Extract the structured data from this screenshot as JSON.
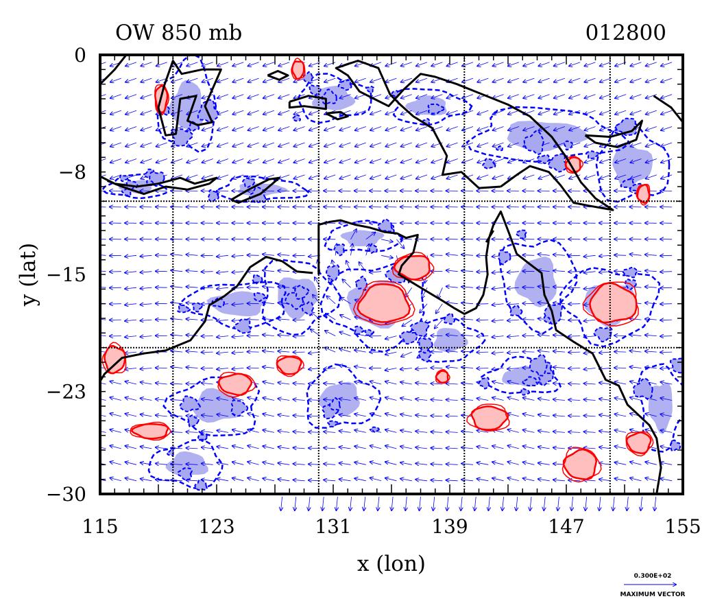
{
  "chart_data": {
    "type": "contour-vector-map",
    "title_left": "OW 850 mb",
    "title_right": "012800",
    "xlabel": "x (lon)",
    "ylabel": "y (lat)",
    "xlim": [
      115,
      155
    ],
    "ylim": [
      -30,
      0
    ],
    "xticks": [
      "115",
      "123",
      "131",
      "139",
      "147",
      "155"
    ],
    "yticks": [
      "0",
      "-8",
      "-15",
      "-23",
      "-30"
    ],
    "grid_lines": {
      "lon": [
        120,
        130,
        140,
        150
      ],
      "lat": [
        -10,
        -20
      ]
    },
    "max_vector_value": "0.300E+02",
    "max_vector_label": "MAXIMUM VECTOR",
    "colors": {
      "positive_line": "#ff0000",
      "positive_fill": "#ffbfbf",
      "negative_line": "#0000ff",
      "negative_fill": "#a8a8f0",
      "coast": "#000000",
      "vectors": "#0000ff"
    },
    "positive_regions": [
      {
        "lon": 134.5,
        "lat": -17.0,
        "rlon": 1.7,
        "rlat": 1.3
      },
      {
        "lon": 150.2,
        "lat": -17.0,
        "rlon": 1.6,
        "rlat": 1.3
      },
      {
        "lon": 124.3,
        "lat": -22.5,
        "rlon": 1.1,
        "rlat": 0.7
      },
      {
        "lon": 118.5,
        "lat": -25.7,
        "rlon": 1.2,
        "rlat": 0.5
      },
      {
        "lon": 116.0,
        "lat": -20.8,
        "rlon": 0.7,
        "rlat": 0.9
      },
      {
        "lon": 141.7,
        "lat": -24.8,
        "rlon": 1.2,
        "rlat": 0.8
      },
      {
        "lon": 148.0,
        "lat": -28.0,
        "rlon": 1.1,
        "rlat": 1.0
      },
      {
        "lon": 152.0,
        "lat": -26.5,
        "rlon": 0.8,
        "rlat": 0.7
      },
      {
        "lon": 136.5,
        "lat": -14.5,
        "rlon": 1.2,
        "rlat": 0.8
      },
      {
        "lon": 138.5,
        "lat": -22.0,
        "rlon": 0.4,
        "rlat": 0.4
      },
      {
        "lon": 128.0,
        "lat": -21.2,
        "rlon": 0.8,
        "rlat": 0.6
      },
      {
        "lon": 119.2,
        "lat": -3.0,
        "rlon": 0.4,
        "rlat": 0.9
      },
      {
        "lon": 128.6,
        "lat": -1.0,
        "rlon": 0.4,
        "rlat": 0.6
      },
      {
        "lon": 152.3,
        "lat": -9.5,
        "rlon": 0.4,
        "rlat": 0.6
      },
      {
        "lon": 147.5,
        "lat": -7.5,
        "rlon": 0.5,
        "rlat": 0.5
      }
    ],
    "negative_regions": [
      {
        "lon": 134.0,
        "lat": -17.0,
        "rlon": 3.5,
        "rlat": 2.8
      },
      {
        "lon": 150.0,
        "lat": -17.0,
        "rlon": 3.2,
        "rlat": 2.5
      },
      {
        "lon": 128.5,
        "lat": -16.5,
        "rlon": 2.5,
        "rlat": 2.5
      },
      {
        "lon": 145.0,
        "lat": -15.5,
        "rlon": 2.5,
        "rlat": 3.0
      },
      {
        "lon": 124.5,
        "lat": -17.0,
        "rlon": 3.5,
        "rlat": 1.5
      },
      {
        "lon": 123.0,
        "lat": -24.0,
        "rlon": 3.0,
        "rlat": 2.0
      },
      {
        "lon": 131.5,
        "lat": -23.5,
        "rlon": 2.5,
        "rlat": 2.0
      },
      {
        "lon": 144.0,
        "lat": -22.0,
        "rlon": 2.5,
        "rlat": 1.2
      },
      {
        "lon": 139.0,
        "lat": -19.5,
        "rlon": 2.0,
        "rlat": 1.5
      },
      {
        "lon": 121.0,
        "lat": -28.0,
        "rlon": 2.5,
        "rlat": 1.5
      },
      {
        "lon": 145.5,
        "lat": -5.5,
        "rlon": 5.0,
        "rlat": 1.8
      },
      {
        "lon": 137.5,
        "lat": -3.5,
        "rlon": 2.5,
        "rlat": 1.2
      },
      {
        "lon": 131.0,
        "lat": -3.0,
        "rlon": 2.5,
        "rlat": 1.5
      },
      {
        "lon": 121.0,
        "lat": -3.5,
        "rlon": 2.0,
        "rlat": 3.0
      },
      {
        "lon": 126.0,
        "lat": -9.2,
        "rlon": 3.0,
        "rlat": 0.8
      },
      {
        "lon": 151.5,
        "lat": -7.5,
        "rlon": 2.5,
        "rlat": 2.5
      },
      {
        "lon": 153.5,
        "lat": -24.0,
        "rlon": 1.5,
        "rlat": 3.0
      },
      {
        "lon": 133.0,
        "lat": -12.5,
        "rlon": 2.5,
        "rlat": 1.0
      },
      {
        "lon": 117.5,
        "lat": -9.0,
        "rlon": 2.0,
        "rlat": 0.8
      }
    ],
    "coastlines": [
      [
        [
          129.6,
          -14.9
        ],
        [
          128.5,
          -14.8
        ],
        [
          127.5,
          -14.1
        ],
        [
          126.4,
          -13.8
        ],
        [
          125.3,
          -14.5
        ],
        [
          124.4,
          -15.8
        ],
        [
          123.5,
          -16.5
        ],
        [
          122.5,
          -17.1
        ],
        [
          122.2,
          -18.2
        ],
        [
          121.2,
          -19.5
        ],
        [
          119.5,
          -20.2
        ],
        [
          118.0,
          -20.4
        ],
        [
          116.5,
          -20.7
        ],
        [
          115.3,
          -21.8
        ],
        [
          115.0,
          -22.3
        ]
      ],
      [
        [
          130.0,
          -15.0
        ],
        [
          130.0,
          -11.6
        ],
        [
          130.8,
          -11.4
        ],
        [
          131.5,
          -11.3
        ],
        [
          132.5,
          -11.6
        ],
        [
          133.5,
          -11.8
        ],
        [
          134.5,
          -12.1
        ],
        [
          135.4,
          -12.2
        ],
        [
          136.0,
          -12.5
        ],
        [
          136.8,
          -12.3
        ],
        [
          136.5,
          -13.5
        ],
        [
          135.7,
          -14.4
        ],
        [
          135.5,
          -15.0
        ],
        [
          136.5,
          -15.6
        ],
        [
          137.5,
          -16.2
        ],
        [
          138.5,
          -16.8
        ],
        [
          139.3,
          -17.3
        ],
        [
          140.0,
          -17.7
        ],
        [
          140.8,
          -17.3
        ],
        [
          141.3,
          -16.4
        ],
        [
          141.6,
          -15.0
        ],
        [
          141.5,
          -13.8
        ],
        [
          141.7,
          -12.5
        ],
        [
          142.0,
          -11.6
        ],
        [
          142.5,
          -10.7
        ],
        [
          143.0,
          -12.0
        ],
        [
          143.6,
          -13.6
        ],
        [
          144.5,
          -14.3
        ],
        [
          145.3,
          -14.9
        ],
        [
          145.5,
          -16.4
        ],
        [
          146.0,
          -17.5
        ],
        [
          146.3,
          -18.8
        ],
        [
          147.5,
          -19.6
        ],
        [
          148.8,
          -20.4
        ],
        [
          149.7,
          -22.2
        ],
        [
          150.6,
          -22.6
        ],
        [
          151.2,
          -23.9
        ],
        [
          152.7,
          -25.3
        ],
        [
          153.2,
          -26.2
        ],
        [
          153.5,
          -28.2
        ],
        [
          153.2,
          -30.0
        ]
      ],
      [
        [
          142.5,
          -9.0
        ],
        [
          143.6,
          -8.2
        ],
        [
          144.5,
          -7.6
        ],
        [
          145.8,
          -8.0
        ],
        [
          146.6,
          -8.9
        ],
        [
          147.5,
          -10.1
        ],
        [
          148.5,
          -10.3
        ],
        [
          150.2,
          -10.6
        ],
        [
          149.0,
          -9.8
        ],
        [
          148.0,
          -8.7
        ],
        [
          147.0,
          -7.0
        ],
        [
          146.0,
          -5.6
        ],
        [
          144.5,
          -4.2
        ],
        [
          143.0,
          -3.4
        ],
        [
          141.0,
          -2.6
        ],
        [
          139.5,
          -2.0
        ],
        [
          138.0,
          -1.5
        ],
        [
          137.0,
          -1.3
        ],
        [
          135.8,
          -2.4
        ],
        [
          134.8,
          -3.5
        ],
        [
          133.8,
          -3.0
        ],
        [
          132.8,
          -2.5
        ],
        [
          132.0,
          -1.4
        ],
        [
          131.2,
          -0.9
        ],
        [
          132.7,
          -0.4
        ],
        [
          134.1,
          -0.9
        ],
        [
          134.9,
          -2.7
        ],
        [
          135.6,
          -3.4
        ],
        [
          136.5,
          -4.2
        ],
        [
          137.8,
          -5.0
        ],
        [
          138.8,
          -6.9
        ],
        [
          138.5,
          -8.2
        ],
        [
          139.8,
          -8.0
        ],
        [
          141.0,
          -9.1
        ],
        [
          142.5,
          -9.0
        ]
      ],
      [
        [
          120.0,
          -0.4
        ],
        [
          119.4,
          -2.1
        ],
        [
          119.0,
          -3.6
        ],
        [
          119.5,
          -5.5
        ],
        [
          120.2,
          -5.4
        ],
        [
          120.5,
          -3.0
        ],
        [
          121.6,
          -2.8
        ],
        [
          121.0,
          -4.5
        ],
        [
          121.7,
          -4.8
        ],
        [
          122.7,
          -4.6
        ],
        [
          122.2,
          -3.5
        ],
        [
          123.3,
          -1.0
        ],
        [
          122.0,
          -1.0
        ],
        [
          120.6,
          -1.3
        ],
        [
          120.0,
          -0.4
        ]
      ],
      [
        [
          115.0,
          -8.3
        ],
        [
          116.0,
          -8.8
        ],
        [
          117.5,
          -9.0
        ],
        [
          119.0,
          -8.8
        ],
        [
          120.5,
          -8.4
        ],
        [
          121.5,
          -8.8
        ],
        [
          123.0,
          -8.4
        ],
        [
          122.5,
          -8.8
        ],
        [
          121.0,
          -9.2
        ],
        [
          119.5,
          -9.0
        ],
        [
          118.0,
          -9.5
        ],
        [
          116.5,
          -9.0
        ],
        [
          115.5,
          -8.6
        ]
      ],
      [
        [
          124.0,
          -9.9
        ],
        [
          125.2,
          -9.2
        ],
        [
          126.6,
          -8.5
        ],
        [
          127.3,
          -8.4
        ],
        [
          126.0,
          -9.5
        ],
        [
          124.5,
          -10.1
        ],
        [
          124.0,
          -9.9
        ]
      ],
      [
        [
          115.0,
          -2.0
        ],
        [
          116.0,
          -1.0
        ],
        [
          116.8,
          0.0
        ]
      ],
      [
        [
          126.5,
          -1.4
        ],
        [
          127.2,
          -1.1
        ],
        [
          127.9,
          -1.4
        ],
        [
          127.3,
          -1.7
        ],
        [
          126.5,
          -1.4
        ]
      ],
      [
        [
          128.0,
          -3.2
        ],
        [
          129.3,
          -2.8
        ],
        [
          130.5,
          -3.0
        ],
        [
          130.5,
          -3.7
        ],
        [
          129.0,
          -3.5
        ],
        [
          128.0,
          -3.6
        ],
        [
          128.0,
          -3.2
        ]
      ],
      [
        [
          130.5,
          -4.0
        ],
        [
          131.5,
          -3.9
        ],
        [
          132.0,
          -4.2
        ],
        [
          131.3,
          -4.4
        ],
        [
          130.5,
          -4.0
        ]
      ],
      [
        [
          153.0,
          -2.8
        ],
        [
          154.2,
          -3.6
        ],
        [
          155.0,
          -4.6
        ]
      ],
      [
        [
          148.3,
          -5.5
        ],
        [
          150.0,
          -5.6
        ],
        [
          151.5,
          -5.2
        ],
        [
          152.2,
          -4.5
        ],
        [
          151.8,
          -5.8
        ],
        [
          150.5,
          -6.3
        ],
        [
          149.0,
          -6.0
        ],
        [
          148.3,
          -5.5
        ]
      ],
      [
        [
          141.5,
          -12.8
        ],
        [
          142.0,
          -12.0
        ]
      ]
    ]
  }
}
